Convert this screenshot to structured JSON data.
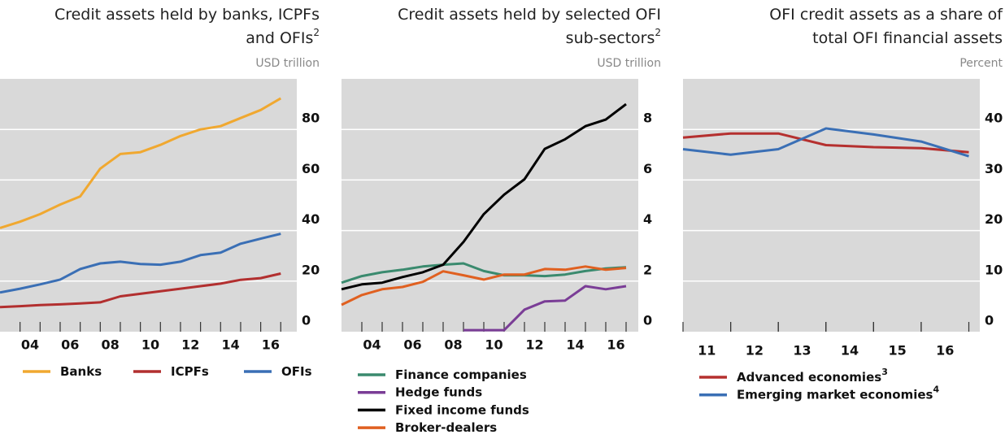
{
  "chart_data": [
    {
      "type": "line",
      "title": [
        "Credit assets held by banks, ICPFs",
        "and OFIs"
      ],
      "title_note": "2",
      "unit": "USD trillion",
      "x": [
        2002,
        2003,
        2004,
        2005,
        2006,
        2007,
        2008,
        2009,
        2010,
        2011,
        2012,
        2013,
        2014,
        2015,
        2016
      ],
      "series": [
        {
          "name": "Banks",
          "color": "#f0a830",
          "values": [
            41,
            43.5,
            46.5,
            50.3,
            53.5,
            64.5,
            70.3,
            71,
            73.9,
            77.4,
            80,
            81.3,
            84.5,
            87.7,
            92.3
          ]
        },
        {
          "name": "ICPFs",
          "color": "#b22f2f",
          "values": [
            9.7,
            10.1,
            10.5,
            10.8,
            11.2,
            11.6,
            14,
            15,
            16,
            17,
            18,
            19,
            20.5,
            21.2,
            23
          ]
        },
        {
          "name": "OFIs",
          "color": "#3a6fb5",
          "values": [
            15.5,
            17,
            18.7,
            20.6,
            24.8,
            27,
            27.7,
            26.8,
            26.5,
            27.7,
            30.3,
            31.3,
            34.8,
            36.8,
            38.7
          ]
        }
      ],
      "xlim": [
        2002,
        2016.8
      ],
      "xticks": [
        {
          "value": 2003.5,
          "label": "04"
        },
        {
          "value": 2005.5,
          "label": "06"
        },
        {
          "value": 2007.5,
          "label": "08"
        },
        {
          "value": 2009.5,
          "label": "10"
        },
        {
          "value": 2011.5,
          "label": "12"
        },
        {
          "value": 2013.5,
          "label": "14"
        },
        {
          "value": 2015.5,
          "label": "16"
        }
      ],
      "ylim": [
        0,
        100
      ],
      "yticks": [
        0,
        20,
        40,
        60,
        80
      ],
      "grid": true,
      "legend": "row"
    },
    {
      "type": "line",
      "title": [
        "Credit assets held by selected OFI",
        "sub-sectors"
      ],
      "title_note": "2",
      "unit": "USD trillion",
      "x": [
        2002,
        2003,
        2004,
        2005,
        2006,
        2007,
        2008,
        2009,
        2010,
        2011,
        2012,
        2013,
        2014,
        2015,
        2016
      ],
      "series": [
        {
          "name": "Finance companies",
          "color": "#3a8a6e",
          "values": [
            1.94,
            2.2,
            2.35,
            2.45,
            2.58,
            2.65,
            2.7,
            2.4,
            2.23,
            2.23,
            2.2,
            2.26,
            2.4,
            2.5,
            2.55
          ]
        },
        {
          "name": "Hedge funds",
          "color": "#7a3d96",
          "values": [
            null,
            null,
            null,
            null,
            null,
            null,
            0.06,
            0.06,
            0.06,
            0.87,
            1.2,
            1.23,
            1.8,
            1.68,
            1.8
          ]
        },
        {
          "name": "Fixed income funds",
          "color": "#000000",
          "values": [
            1.68,
            1.87,
            1.94,
            2.16,
            2.35,
            2.65,
            3.55,
            4.65,
            5.42,
            6.03,
            7.23,
            7.61,
            8.13,
            8.39,
            9.0
          ]
        },
        {
          "name": "Broker-dealers",
          "color": "#e06020",
          "values": [
            1.06,
            1.45,
            1.68,
            1.77,
            1.97,
            2.39,
            2.23,
            2.06,
            2.26,
            2.26,
            2.48,
            2.45,
            2.58,
            2.45,
            2.52
          ]
        }
      ],
      "xlim": [
        2002,
        2016.6
      ],
      "xticks": [
        {
          "value": 2003.5,
          "label": "04"
        },
        {
          "value": 2005.5,
          "label": "06"
        },
        {
          "value": 2007.5,
          "label": "08"
        },
        {
          "value": 2009.5,
          "label": "10"
        },
        {
          "value": 2011.5,
          "label": "12"
        },
        {
          "value": 2013.5,
          "label": "14"
        },
        {
          "value": 2015.5,
          "label": "16"
        }
      ],
      "ylim": [
        0,
        10
      ],
      "yticks": [
        0,
        2,
        4,
        6,
        8
      ],
      "grid": true,
      "legend": "column"
    },
    {
      "type": "line",
      "title": [
        "OFI credit assets as a share of",
        "total OFI financial assets"
      ],
      "unit": "Percent",
      "x": [
        2010,
        2011,
        2012,
        2013,
        2014,
        2015,
        2016
      ],
      "series": [
        {
          "name": "Advanced economies",
          "note": "3",
          "color": "#b5302f",
          "values": [
            38.4,
            39.2,
            39.2,
            36.9,
            36.5,
            36.3,
            35.5
          ]
        },
        {
          "name": "Emerging market economies",
          "note": "4",
          "color": "#3a6fb5",
          "values": [
            36.1,
            35,
            36.1,
            40.2,
            39,
            37.6,
            34.7
          ]
        }
      ],
      "xlim": [
        2010,
        2016.23
      ],
      "xticks": [
        {
          "value": 2010.5,
          "label": "11"
        },
        {
          "value": 2011.5,
          "label": "12"
        },
        {
          "value": 2012.5,
          "label": "13"
        },
        {
          "value": 2013.5,
          "label": "14"
        },
        {
          "value": 2014.5,
          "label": "15"
        },
        {
          "value": 2015.5,
          "label": "16"
        }
      ],
      "ylim": [
        0,
        50
      ],
      "yticks": [
        0,
        10,
        20,
        30,
        40
      ],
      "grid": true,
      "legend": "column"
    }
  ]
}
